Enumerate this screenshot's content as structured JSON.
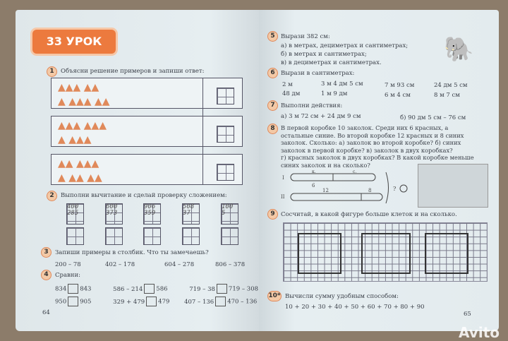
{
  "left": {
    "lesson": "33 УРОК",
    "t1": {
      "n": "1",
      "text": "Объясни решение примеров и запиши ответ:"
    },
    "t2": {
      "n": "2",
      "text": "Выполни вычитание и сделай проверку сложением:",
      "items": [
        [
          "400",
          "285"
        ],
        [
          "600",
          "373"
        ],
        [
          "906",
          "359"
        ],
        [
          "508",
          "37"
        ],
        [
          "100",
          "5"
        ]
      ]
    },
    "t3": {
      "n": "3",
      "text": "Запиши примеры в столбик. Что ты замечаешь?",
      "items": [
        "200 – 78",
        "402 – 178",
        "604 – 278",
        "806 – 378"
      ]
    },
    "t4": {
      "n": "4",
      "text": "Сравни:",
      "rows": [
        [
          [
            "834",
            "843"
          ],
          [
            "586 – 214",
            "586"
          ],
          [
            "719 – 38",
            "719 – 308"
          ]
        ],
        [
          [
            "950",
            "905"
          ],
          [
            "329 + 479",
            "479"
          ],
          [
            "407 – 136",
            "470 – 136"
          ]
        ]
      ]
    },
    "page": "64"
  },
  "right": {
    "t5": {
      "n": "5",
      "text": "Вырази 382 см:",
      "lines": [
        "а) в метрах, дециметрах и сантиметрах;",
        "б) в метрах и сантиметрах;",
        "в) в дециметрах и сантиметрах."
      ]
    },
    "t6": {
      "n": "6",
      "text": "Вырази в сантиметрах:",
      "rows": [
        [
          "2 м",
          "3 м 4 дм 5 см",
          "7 м 93 см",
          "24 дм 5 см"
        ],
        [
          "48 дм",
          "1 м 9 дм",
          "6 м 4 см",
          "8 м 7 см"
        ]
      ]
    },
    "t7": {
      "n": "7",
      "text": "Выполни действия:",
      "a": "а) 3 м 72 см + 24 дм 9 см",
      "b": "б) 90 дм 5 см – 76 см"
    },
    "t8": {
      "n": "8",
      "lines": [
        "В первой коробке 10 заколок. Среди них 6 красных, а",
        "остальные синие. Во второй коробке 12 красных и 8 синих",
        "заколок. Сколько: а) заколок во второй коробке? б) синих",
        "заколок в первой коробке? в) заколок в двух коробках?",
        "г) красных заколок в двух коробках? В какой коробке меньше",
        "синих заколок и на сколько?"
      ],
      "diagram": {
        "r1": "I",
        "r2": "II",
        "k": "к.",
        "s": "с.",
        "v6": "6",
        "v12": "12",
        "v8": "8",
        "q": "?"
      }
    },
    "t9": {
      "n": "9",
      "text": "Сосчитай, в какой фигуре больше клеток и на сколько."
    },
    "t10": {
      "n": "10*",
      "text": "Вычисли сумму удобным способом:",
      "expr": "10 + 20 + 30 + 40 + 50 + 60 + 70 + 80 + 90"
    },
    "page": "65"
  },
  "watermark": "Avito"
}
